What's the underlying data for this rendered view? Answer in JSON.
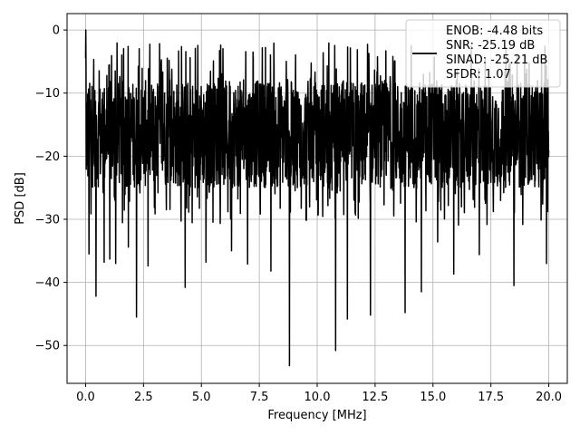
{
  "chart_data": {
    "type": "line",
    "xlabel": "Frequency [MHz]",
    "ylabel": "PSD [dB]",
    "xlim": [
      -0.8,
      20.8
    ],
    "ylim": [
      -56,
      2.6
    ],
    "xticks": [
      0.0,
      2.5,
      5.0,
      7.5,
      10.0,
      12.5,
      15.0,
      17.5,
      20.0
    ],
    "xtick_labels": [
      "0.0",
      "2.5",
      "5.0",
      "7.5",
      "10.0",
      "12.5",
      "15.0",
      "17.5",
      "20.0"
    ],
    "yticks": [
      0,
      -10,
      -20,
      -30,
      -40,
      -50
    ],
    "ytick_labels": [
      "0",
      "−10",
      "−20",
      "−30",
      "−40",
      "−50"
    ],
    "grid": true,
    "legend_position": "top-right",
    "series": [
      {
        "name": "ENOB: -4.48 bits\nSNR: -25.19 dB\nSINAD: -25.21 dB\nSFDR: 1.07",
        "color": "#000000",
        "x_start": 0.0,
        "x_end": 20.0,
        "points_count": 2048,
        "typical_range_db": [
          -25,
          -8
        ],
        "peak_db": 0.0,
        "notable_dips": [
          {
            "x": 0.15,
            "y": -35.5
          },
          {
            "x": 0.45,
            "y": -42.2
          },
          {
            "x": 0.8,
            "y": -36.8
          },
          {
            "x": 1.05,
            "y": -36.3
          },
          {
            "x": 1.3,
            "y": -37.0
          },
          {
            "x": 1.85,
            "y": -34.4
          },
          {
            "x": 2.2,
            "y": -45.5
          },
          {
            "x": 2.7,
            "y": -37.4
          },
          {
            "x": 4.3,
            "y": -40.8
          },
          {
            "x": 5.2,
            "y": -36.8
          },
          {
            "x": 6.3,
            "y": -35.0
          },
          {
            "x": 7.0,
            "y": -37.1
          },
          {
            "x": 8.0,
            "y": -38.2
          },
          {
            "x": 8.8,
            "y": -53.2
          },
          {
            "x": 10.8,
            "y": -50.8
          },
          {
            "x": 11.3,
            "y": -45.8
          },
          {
            "x": 12.3,
            "y": -45.2
          },
          {
            "x": 13.8,
            "y": -44.8
          },
          {
            "x": 14.5,
            "y": -41.5
          },
          {
            "x": 15.2,
            "y": -33.6
          },
          {
            "x": 15.9,
            "y": -38.7
          },
          {
            "x": 17.0,
            "y": -35.6
          },
          {
            "x": 18.5,
            "y": -40.5
          },
          {
            "x": 19.9,
            "y": -37.0
          }
        ]
      }
    ]
  }
}
